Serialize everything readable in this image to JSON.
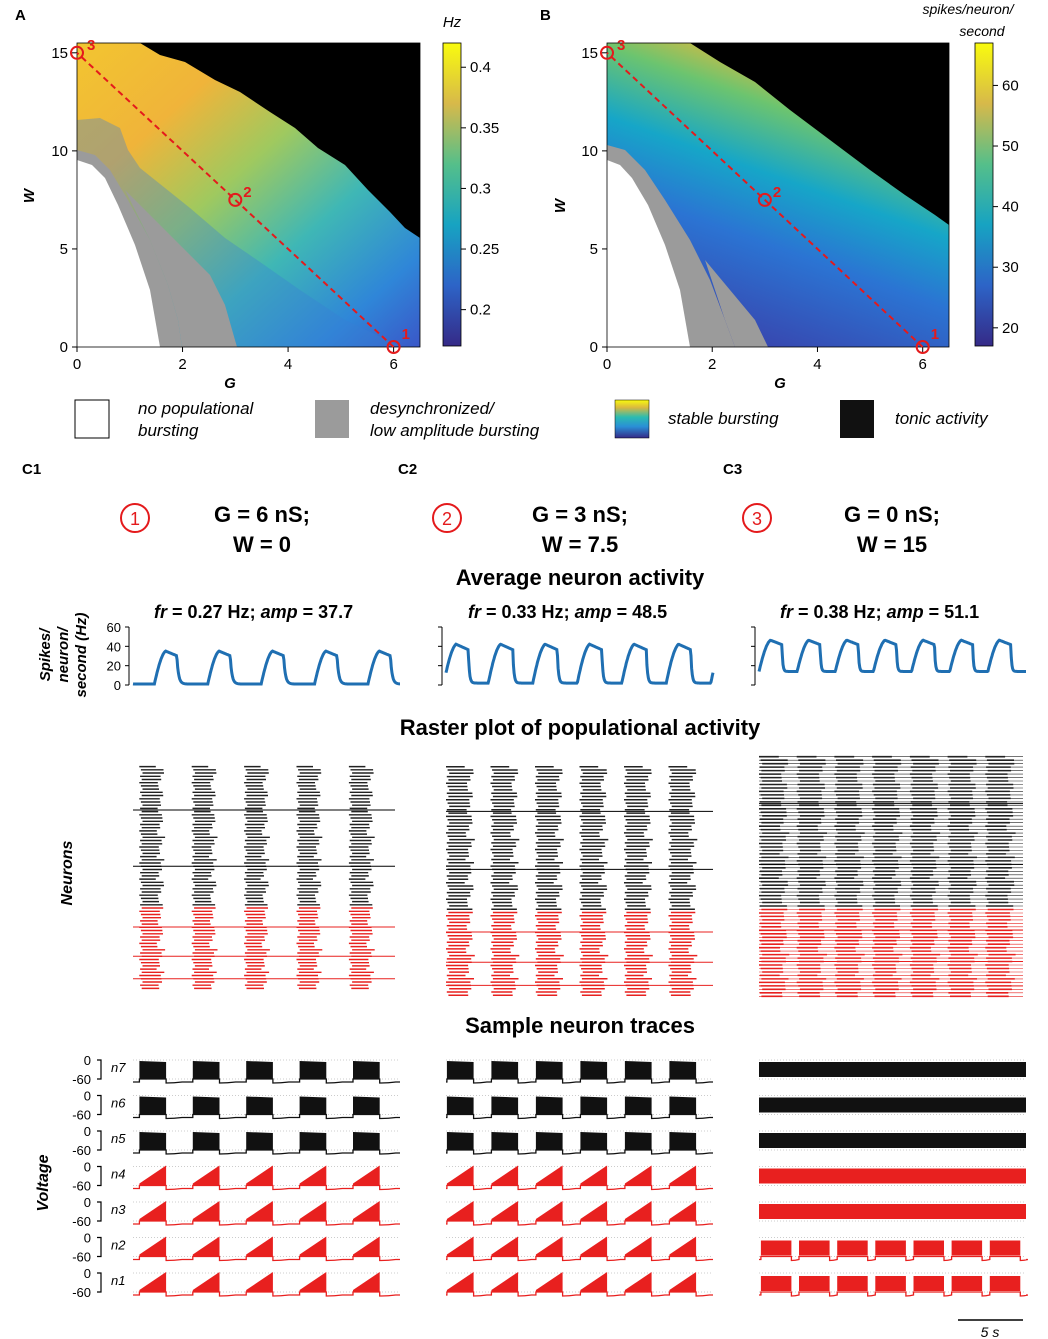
{
  "panel_labels": {
    "A": "A",
    "B": "B",
    "C1": "C1",
    "C2": "C2",
    "C3": "C3"
  },
  "colors": {
    "path": "#e41a1c",
    "trace_red": "#e8201f",
    "trace_black": "#111111",
    "line_blue": "#1f6fb2",
    "gray_region": "#9b9b9b"
  },
  "chart_data": [
    {
      "id": "A",
      "type": "heatmap",
      "xlabel": "G",
      "ylabel": "W",
      "xlim": [
        0,
        6.5
      ],
      "ylim": [
        0,
        15.5
      ],
      "xticks": [
        "0",
        "2",
        "4",
        "6"
      ],
      "yticks": [
        "0",
        "5",
        "10",
        "15"
      ],
      "colorbar": {
        "unit": "Hz",
        "range": [
          0.17,
          0.42
        ],
        "ticks": [
          "0.2",
          "0.25",
          "0.3",
          "0.35",
          "0.4"
        ]
      },
      "path_points": [
        {
          "label": "1",
          "G": 6,
          "W": 0
        },
        {
          "label": "2",
          "G": 3,
          "W": 7.5
        },
        {
          "label": "3",
          "G": 0,
          "W": 15
        }
      ]
    },
    {
      "id": "B",
      "type": "heatmap",
      "xlabel": "G",
      "ylabel": "W",
      "xlim": [
        0,
        6.5
      ],
      "ylim": [
        0,
        15.5
      ],
      "xticks": [
        "0",
        "2",
        "4",
        "6"
      ],
      "yticks": [
        "0",
        "5",
        "10",
        "15"
      ],
      "colorbar": {
        "unit_lines": [
          "spikes/neuron/",
          "second"
        ],
        "range": [
          17,
          67
        ],
        "ticks": [
          "20",
          "30",
          "40",
          "50",
          "60"
        ]
      },
      "path_points": [
        {
          "label": "1",
          "G": 6,
          "W": 0
        },
        {
          "label": "2",
          "G": 3,
          "W": 7.5
        },
        {
          "label": "3",
          "G": 0,
          "W": 15
        }
      ]
    },
    {
      "id": "C-activity",
      "type": "line",
      "ylabel_lines": [
        "Spikes/",
        "neuron/",
        "second (Hz)"
      ],
      "ylim": [
        0,
        60
      ],
      "yticks": [
        "0",
        "20",
        "40",
        "60"
      ],
      "series": [
        {
          "name": "C1",
          "fr": "0.27 Hz",
          "amp": "37.7",
          "bursts": 5,
          "peak": 40,
          "base": 1
        },
        {
          "name": "C2",
          "fr": "0.33 Hz",
          "amp": "48.5",
          "bursts": 6,
          "peak": 48,
          "base": 2
        },
        {
          "name": "C3",
          "fr": "0.38 Hz",
          "amp": "51.1",
          "bursts": 7,
          "peak": 51,
          "base": 14
        }
      ]
    }
  ],
  "legend": [
    {
      "key": "white",
      "lines": [
        "no populational",
        "bursting"
      ]
    },
    {
      "key": "gray",
      "lines": [
        "desynchronized/",
        "low amplitude bursting"
      ]
    },
    {
      "key": "gradient",
      "lines": [
        "stable bursting"
      ]
    },
    {
      "key": "black",
      "lines": [
        "tonic activity"
      ]
    }
  ],
  "conditions": [
    {
      "marker": "1",
      "line1": "G = 6 nS;",
      "line2": "W = 0"
    },
    {
      "marker": "2",
      "line1": "G = 3 nS;",
      "line2": "W = 7.5"
    },
    {
      "marker": "3",
      "line1": "G = 0 nS;",
      "line2": "W = 15"
    }
  ],
  "section_titles": {
    "activity": "Average neuron activity",
    "raster": "Raster plot of populational activity",
    "traces": "Sample neuron traces"
  },
  "raster": {
    "ylabel": "Neurons"
  },
  "traces": {
    "ylabel": "Voltage",
    "ytick_top": "0",
    "ytick_bottom": "-60",
    "neurons": [
      "n7",
      "n6",
      "n5",
      "n4",
      "n3",
      "n2",
      "n1"
    ],
    "scale_bar": "5 s"
  }
}
